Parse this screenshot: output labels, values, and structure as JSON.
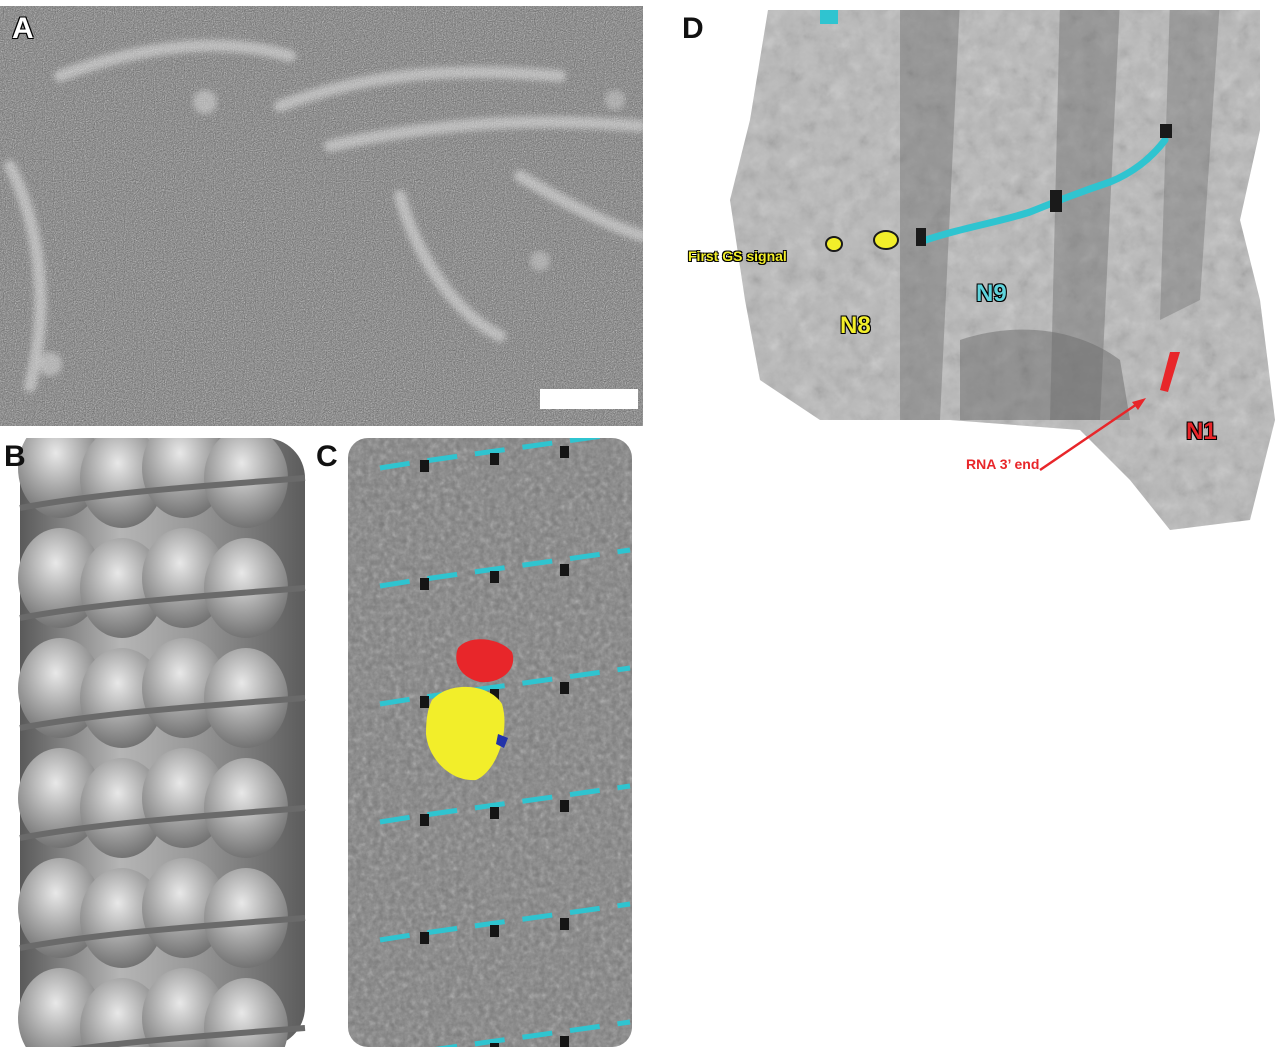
{
  "figure": {
    "panels": [
      {
        "label": "A",
        "kind": "negative-stain-electron-micrograph"
      },
      {
        "label": "B",
        "kind": "cryo-em-density-map"
      },
      {
        "label": "C",
        "kind": "surface-model-helix"
      },
      {
        "label": "D",
        "kind": "surface-model-closeup"
      }
    ],
    "panel_d": {
      "first_gs_signal": "First GS signal",
      "n8": "N8",
      "n9": "N9",
      "n1": "N1",
      "rna_end": "RNA 3’ end"
    },
    "colors": {
      "rna": "#2fc4d0",
      "highlight_red": "#e8262a",
      "highlight_yellow": "#f2ee2a",
      "highlight_blue": "#2233aa",
      "protein_grey": "#8a8a8a",
      "protein_light": "#c8c8c8"
    },
    "scale_bar": "scale-bar"
  }
}
